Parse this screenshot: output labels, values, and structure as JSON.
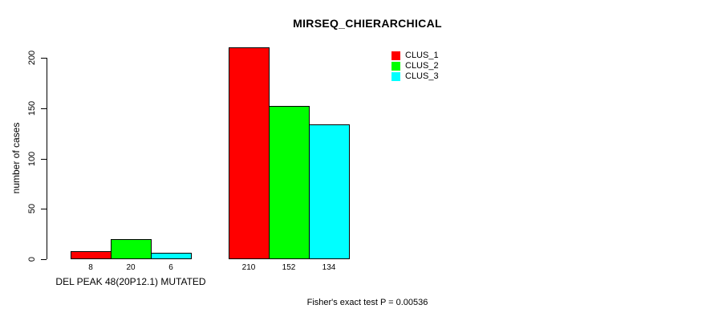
{
  "chart_data": {
    "type": "bar",
    "title": "MIRSEQ_CHIERARCHICAL",
    "ylabel": "number of cases",
    "xlabel": "DEL PEAK 48(20P12.1) MUTATED",
    "annotation": "Fisher's exact test P = 0.00536",
    "ylim": [
      0,
      210
    ],
    "yticks": [
      0,
      50,
      100,
      150,
      200
    ],
    "grid": false,
    "legend_position": "top-right",
    "bar_border_color": "#000000",
    "series": [
      {
        "name": "CLUS_1",
        "color": "#FF0000",
        "values": [
          8,
          210
        ]
      },
      {
        "name": "CLUS_2",
        "color": "#00FF00",
        "values": [
          20,
          152
        ]
      },
      {
        "name": "CLUS_3",
        "color": "#00FFFF",
        "values": [
          6,
          134
        ]
      }
    ]
  }
}
